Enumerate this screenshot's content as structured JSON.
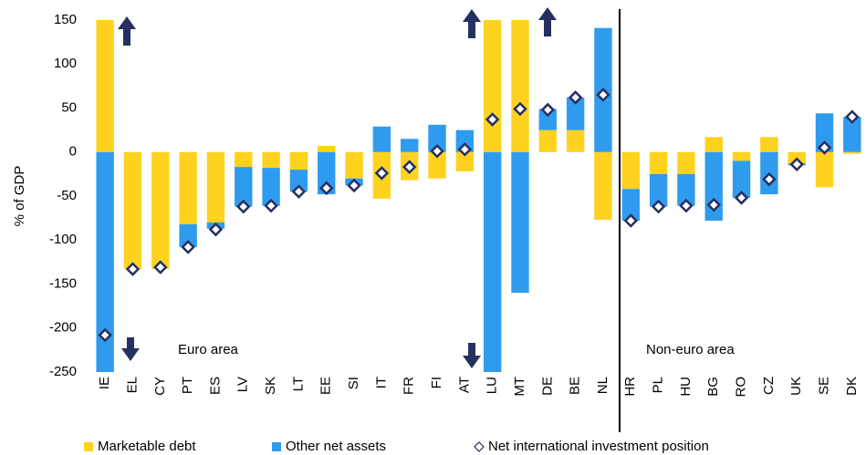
{
  "chart_data": {
    "type": "bar",
    "stacked": true,
    "y_label": "% of GDP",
    "annotations": [
      "Euro area",
      "Non-euro area"
    ],
    "categories": [
      "IE",
      "EL",
      "CY",
      "PT",
      "ES",
      "LV",
      "SK",
      "LT",
      "EE",
      "SI",
      "IT",
      "FR",
      "FI",
      "AT",
      "LU",
      "MT",
      "DE",
      "BE",
      "NL",
      "HR",
      "PL",
      "HU",
      "BG",
      "RO",
      "CZ",
      "UK",
      "SE",
      "DK"
    ],
    "series": [
      {
        "name": "Marketable debt",
        "type": "bar",
        "color": "#ffd21f",
        "values": [
          150,
          -133,
          -133,
          -82,
          -80,
          -17,
          -18,
          -20,
          7,
          -30,
          -53,
          -32,
          -30,
          -22,
          150,
          150,
          25,
          25,
          -77,
          -42,
          -25,
          -25,
          17,
          -10,
          17,
          -13,
          -40,
          -2
        ]
      },
      {
        "name": "Other net assets",
        "type": "bar",
        "color": "#2f9bef",
        "values": [
          -250,
          0,
          0,
          -26,
          -7,
          -45,
          -43,
          -25,
          -48,
          -8,
          29,
          15,
          31,
          25,
          -250,
          -160,
          24,
          37,
          141,
          -36,
          -37,
          -36,
          -78,
          -42,
          -48,
          -2,
          44,
          40
        ]
      },
      {
        "name": "Net international investment position",
        "type": "scatter",
        "color": "#26305f",
        "values": [
          -208,
          -133,
          -131,
          -108,
          -88,
          -62,
          -61,
          -45,
          -41,
          -38,
          -24,
          -17,
          1,
          3,
          37,
          49,
          48,
          62,
          65,
          -78,
          -62,
          -61,
          -60,
          -52,
          -31,
          -14,
          5,
          40
        ]
      }
    ],
    "ylim": [
      -250,
      150
    ],
    "yticks": [
      150,
      100,
      50,
      0,
      -50,
      -100,
      -150,
      -200,
      -250
    ]
  }
}
